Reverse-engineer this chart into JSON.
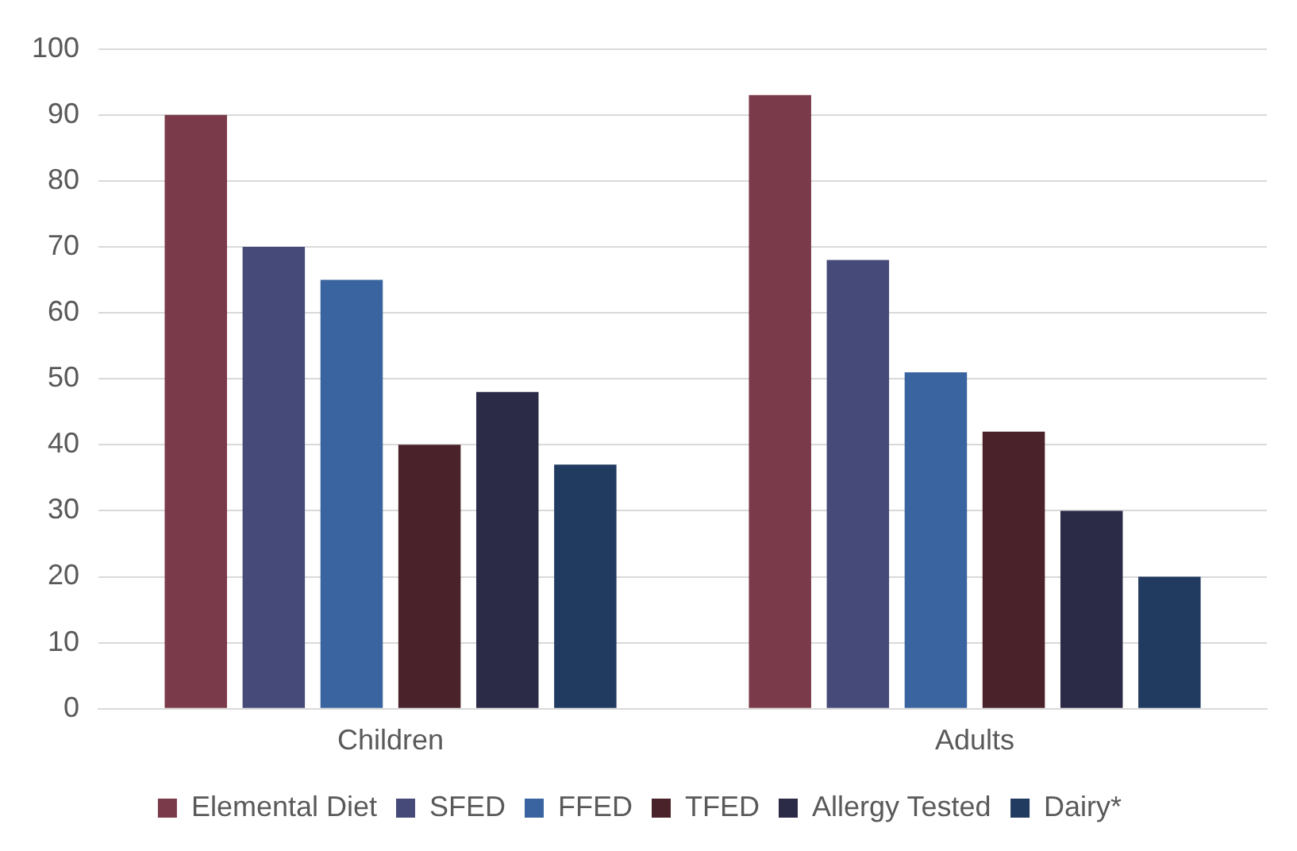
{
  "chart_data": {
    "type": "bar",
    "categories": [
      "Children",
      "Adults"
    ],
    "series": [
      {
        "name": "Elemental Diet",
        "color": "#7b3a4a",
        "values": [
          90,
          93
        ]
      },
      {
        "name": "SFED",
        "color": "#464a78",
        "values": [
          70,
          68
        ]
      },
      {
        "name": "FFED",
        "color": "#3a64a0",
        "values": [
          65,
          51
        ]
      },
      {
        "name": "TFED",
        "color": "#4a222a",
        "values": [
          40,
          42
        ]
      },
      {
        "name": "Allergy Tested",
        "color": "#2b2b47",
        "values": [
          48,
          30
        ]
      },
      {
        "name": "Dairy*",
        "color": "#213a60",
        "values": [
          37,
          20
        ]
      }
    ],
    "ylim": [
      0,
      100
    ],
    "yticks": [
      0,
      10,
      20,
      30,
      40,
      50,
      60,
      70,
      80,
      90,
      100
    ],
    "grid": "y",
    "legend": "bottom"
  }
}
